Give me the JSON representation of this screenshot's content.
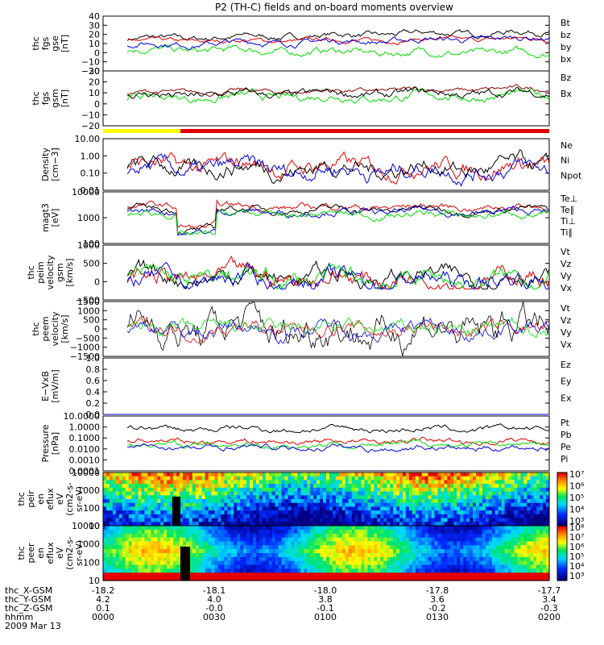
{
  "title": "P2 (TH-C) fields and on-board moments overview",
  "footer": {
    "row_labels": [
      "thc_X-GSM",
      "thc_Y-GSM",
      "thc_Z-GSM",
      "hhmm",
      "2009 Mar 13"
    ],
    "x_gsm": [
      "-18.2",
      "-18.1",
      "-18.0",
      "-17.8",
      "-17.7"
    ],
    "y_gsm": [
      "4.2",
      "4.0",
      "3.8",
      "3.6",
      "3.4"
    ],
    "z_gsm": [
      "0.1",
      "-0.0",
      "-0.1",
      "-0.2",
      "-0.3"
    ],
    "hhmm": [
      "0000",
      "0030",
      "0100",
      "0130",
      "0200"
    ]
  },
  "colors": {
    "black": "#000000",
    "red": "#e00000",
    "green": "#00dd00",
    "blue": "#0000dd",
    "darkred": "#8b0000",
    "yellow": "#ffff00"
  },
  "chart_data": [
    {
      "type": "line",
      "id": "fgs-gse",
      "ylabel": [
        "thc",
        "fgs",
        "gse",
        "[nT]"
      ],
      "yticks": [
        "40",
        "30",
        "20",
        "10",
        "0",
        "−10",
        "−20"
      ],
      "ylim": [
        -20,
        40
      ],
      "series": [
        {
          "name": "Bt",
          "color": "#000000",
          "base": 15,
          "amp": 4,
          "trend": 8
        },
        {
          "name": "bz",
          "color": "#e00000",
          "base": 12,
          "amp": 3,
          "trend": 3
        },
        {
          "name": "by",
          "color": "#00dd00",
          "base": 3,
          "amp": 5,
          "trend": -4
        },
        {
          "name": "bx",
          "color": "#0000dd",
          "base": 9,
          "amp": 4,
          "trend": 7
        }
      ]
    },
    {
      "type": "line",
      "id": "fgs-gsm",
      "ylabel": [
        "thc",
        "fgs",
        "gsm",
        "[nT]"
      ],
      "yticks": [
        "30",
        "20",
        "10",
        "0",
        "−10",
        "−20"
      ],
      "ylim": [
        -25,
        30
      ],
      "series": [
        {
          "name": "Bz",
          "color": "#8b0000",
          "base": 8,
          "amp": 3,
          "trend": 4
        },
        {
          "name": "Bx",
          "color": "#00dd00",
          "base": 3,
          "amp": 5,
          "trend": 2
        },
        {
          "name": "",
          "color": "#000000",
          "base": 5,
          "amp": 5,
          "trend": 3
        }
      ]
    },
    {
      "type": "line",
      "id": "density",
      "scale": "log",
      "ylabel": [
        "Density",
        "[cm−3]"
      ],
      "yticks": [
        "10.00",
        "1.00",
        "0.10",
        "0.01"
      ],
      "ylim": [
        0.01,
        10
      ],
      "series": [
        {
          "name": "Ne",
          "color": "#e00000"
        },
        {
          "name": "Ni",
          "color": "#000000"
        },
        {
          "name": "Npot",
          "color": "#0000dd"
        }
      ]
    },
    {
      "type": "line",
      "id": "temperature",
      "scale": "log",
      "ylabel": [
        "magt3",
        "[eV]"
      ],
      "yticks": [
        "10000",
        "1000",
        "100"
      ],
      "ylim": [
        40,
        10000
      ],
      "series": [
        {
          "name": "Te⊥",
          "color": "#e00000"
        },
        {
          "name": "Te∥",
          "color": "#000000"
        },
        {
          "name": "Ti⊥",
          "color": "#0000dd"
        },
        {
          "name": "Ti∥",
          "color": "#00dd00"
        }
      ]
    },
    {
      "type": "line",
      "id": "peim-velocity",
      "ylabel": [
        "thc",
        "peim",
        "velocity",
        "gsm",
        "[km/s]"
      ],
      "yticks": [
        "1000",
        "500",
        "0",
        "−500"
      ],
      "ylim": [
        -500,
        1000
      ],
      "series": [
        {
          "name": "Vt",
          "color": "#000000"
        },
        {
          "name": "Vz",
          "color": "#e00000"
        },
        {
          "name": "Vy",
          "color": "#00dd00"
        },
        {
          "name": "Vx",
          "color": "#0000dd"
        }
      ]
    },
    {
      "type": "line",
      "id": "peem-velocity",
      "ylabel": [
        "thc",
        "peem",
        "velocity",
        "[km/s]"
      ],
      "yticks": [
        "1500",
        "1000",
        "500",
        "0",
        "−500",
        "−1000",
        "−1500"
      ],
      "ylim": [
        -1500,
        1500
      ],
      "series": [
        {
          "name": "Vt",
          "color": "#000000"
        },
        {
          "name": "Vz",
          "color": "#e00000"
        },
        {
          "name": "Vy",
          "color": "#00dd00"
        },
        {
          "name": "Vx",
          "color": "#0000dd"
        }
      ]
    },
    {
      "type": "line",
      "id": "e-vxb",
      "ylabel": [
        "E−VxB",
        "[mV/m]"
      ],
      "yticks": [
        "1.0",
        "0.8",
        "0.6",
        "0.4",
        "0.2",
        "0.0"
      ],
      "ylim": [
        0,
        1
      ],
      "series": [
        {
          "name": "Ez",
          "color": "#e00000"
        },
        {
          "name": "Ey",
          "color": "#00dd00"
        },
        {
          "name": "Ex",
          "color": "#0000dd"
        }
      ]
    },
    {
      "type": "line",
      "id": "pressure",
      "scale": "log",
      "ylabel": [
        "Pressure",
        "[nPa]"
      ],
      "yticks": [
        "10.0000",
        "1.0000",
        "0.1000",
        "0.0100",
        "0.0010",
        "0.0001"
      ],
      "ylim": [
        0.0001,
        10
      ],
      "series": [
        {
          "name": "Pt",
          "color": "#000000"
        },
        {
          "name": "Pb",
          "color": "#e00000"
        },
        {
          "name": "Pe",
          "color": "#00dd00"
        },
        {
          "name": "Pi",
          "color": "#0000dd"
        }
      ]
    },
    {
      "type": "heatmap",
      "id": "peir-eflux",
      "ylabel": [
        "thc",
        "peir",
        "en",
        "eflux",
        "eV",
        "(cm2-s-",
        "sr-eV)"
      ],
      "yticks": [
        "10000",
        "1000",
        "100",
        "10"
      ],
      "colorbar_ticks": [
        "10⁷",
        "10⁶",
        "10⁵",
        "10⁴",
        "10³"
      ]
    },
    {
      "type": "heatmap",
      "id": "peer-eflux",
      "ylabel": [
        "thc",
        "peer",
        "en",
        "eflux",
        "eV",
        "(cm2-s-",
        "sr-eV)"
      ],
      "yticks": [
        "10000",
        "1000",
        "100",
        "10"
      ],
      "colorbar_ticks": [
        "10⁸",
        "10⁷",
        "10⁶",
        "10⁵",
        "10⁴",
        "10³"
      ]
    }
  ]
}
